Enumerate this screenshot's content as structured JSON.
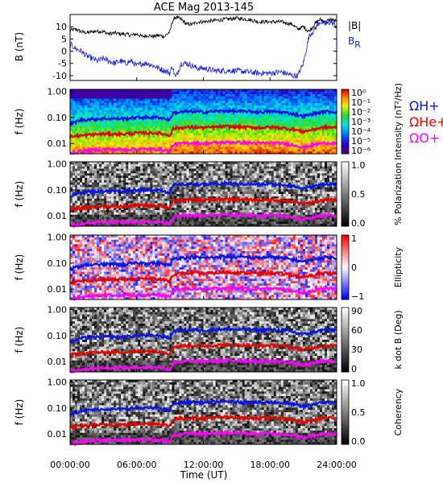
{
  "title": "ACE Mag 2013-145",
  "colors": {
    "B_total": "#000000",
    "B_R": "#1a1ae6",
    "omega_H": "#0a14e6",
    "omega_He": "#e60000",
    "omega_O": "#ff00ff"
  },
  "legend": {
    "top": [
      "|B|",
      "B_R"
    ],
    "gyro": [
      "ΩH+",
      "ΩHe+",
      "ΩO+"
    ]
  },
  "x_axis": {
    "label": "Time (UT)",
    "ticks": [
      "00:00:00",
      "06:00:00",
      "12:00:00",
      "18:00:00",
      "24:00:00"
    ],
    "range_hours": [
      0,
      24
    ]
  },
  "chart_data": [
    {
      "type": "line",
      "panel": "B",
      "ylabel": "B (nT)",
      "ylim": [
        -12,
        15
      ],
      "yticks": [
        "10",
        "5",
        "0",
        "-5",
        "-10"
      ],
      "ytick_values": [
        10,
        5,
        0,
        -5,
        -10
      ],
      "series": [
        {
          "name": "|B|",
          "x": [
            0,
            0.5,
            1,
            1.5,
            2,
            2.5,
            3,
            3.5,
            4,
            4.5,
            5,
            5.5,
            6,
            6.5,
            7,
            7.5,
            8,
            8.5,
            9,
            9.2,
            9.5,
            10,
            10.5,
            11,
            11.5,
            12,
            13,
            14,
            15,
            16,
            17,
            18,
            19,
            20,
            20.5,
            21,
            21.5,
            22,
            22.5,
            23,
            23.5,
            24
          ],
          "y": [
            8.5,
            9,
            8,
            7.5,
            8,
            8.2,
            8,
            7,
            7.5,
            7,
            7,
            6.5,
            7,
            6,
            6.5,
            6,
            6.5,
            6,
            8,
            12,
            14,
            13,
            11,
            11,
            12,
            12,
            12.5,
            13,
            13.5,
            13,
            12,
            12,
            12,
            11,
            9,
            10,
            8,
            11,
            13,
            12,
            13,
            12
          ]
        },
        {
          "name": "B_R",
          "x": [
            0,
            0.5,
            1,
            1.5,
            2,
            2.5,
            3,
            3.5,
            4,
            4.5,
            5,
            5.5,
            6,
            6.5,
            7,
            7.5,
            8,
            8.5,
            9,
            9.2,
            9.5,
            10,
            10.5,
            11,
            11.5,
            12,
            13,
            14,
            15,
            16,
            17,
            18,
            19,
            20,
            20.5,
            21,
            21.5,
            22,
            22.5,
            23,
            23.5,
            24
          ],
          "y": [
            3,
            1,
            0,
            -2,
            -3,
            -4,
            -3,
            -4,
            -5,
            -4,
            -5,
            -4,
            -6,
            -5,
            -5,
            -6,
            -7,
            -8,
            -9,
            -6,
            -11,
            -5,
            -5,
            -6,
            -7,
            -7,
            -8,
            -8,
            -8,
            -8.5,
            -9,
            -9,
            -8.5,
            -10,
            -10,
            -5,
            6,
            9,
            12,
            11,
            12,
            10
          ]
        }
      ]
    },
    {
      "type": "heatmap",
      "panel": "intensity",
      "ylabel": "f (Hz)",
      "yscale": "log",
      "ylim": [
        0.004,
        1.2
      ],
      "yticks": [
        "1.00",
        "0.10",
        "0.01"
      ],
      "ytick_values": [
        1,
        0.1,
        0.01
      ],
      "colorbar": {
        "label": "Intensity (nT²/Hz)",
        "ticks": [
          "10⁰",
          "10⁻¹",
          "10⁻²",
          "10⁻³",
          "10⁻⁴",
          "10⁻⁵",
          "10⁻⁶"
        ],
        "scale": "rainbow"
      }
    },
    {
      "type": "heatmap",
      "panel": "polarization",
      "ylabel": "f (Hz)",
      "yscale": "log",
      "ylim": [
        0.004,
        1.2
      ],
      "yticks": [
        "1.00",
        "0.10",
        "0.01"
      ],
      "ytick_values": [
        1,
        0.1,
        0.01
      ],
      "colorbar": {
        "label": "% Polarization",
        "ticks": [
          "1.0",
          "0.5",
          "0.0"
        ],
        "scale": "gray"
      }
    },
    {
      "type": "heatmap",
      "panel": "ellipticity",
      "ylabel": "f (Hz)",
      "yscale": "log",
      "ylim": [
        0.004,
        1.2
      ],
      "yticks": [
        "1.00",
        "0.10",
        "0.01"
      ],
      "ytick_values": [
        1,
        0.1,
        0.01
      ],
      "colorbar": {
        "label": "Ellipticity",
        "ticks": [
          "1",
          "0",
          "−1"
        ],
        "scale": "bwr"
      }
    },
    {
      "type": "heatmap",
      "panel": "kdotb",
      "ylabel": "f (Hz)",
      "yscale": "log",
      "ylim": [
        0.004,
        1.2
      ],
      "yticks": [
        "1.00",
        "0.10",
        "0.01"
      ],
      "ytick_values": [
        1,
        0.1,
        0.01
      ],
      "colorbar": {
        "label": "k dot B (Deg)",
        "ticks": [
          "90",
          "60",
          "30",
          "0"
        ],
        "scale": "gray"
      }
    },
    {
      "type": "heatmap",
      "panel": "coherency",
      "ylabel": "f (Hz)",
      "yscale": "log",
      "ylim": [
        0.004,
        1.2
      ],
      "yticks": [
        "1.00",
        "0.10",
        "0.01"
      ],
      "ytick_values": [
        1,
        0.1,
        0.01
      ],
      "colorbar": {
        "label": "Coherency",
        "ticks": [
          "1.0",
          "0.5",
          "0.0"
        ],
        "scale": "gray"
      }
    }
  ],
  "gyrofrequency": {
    "x": [
      0,
      1,
      2,
      3,
      4,
      5,
      6,
      7,
      8,
      9,
      9.3,
      10,
      11,
      12,
      13,
      14,
      15,
      16,
      17,
      18,
      19,
      20,
      21,
      22,
      23,
      24
    ],
    "H+": [
      0.055,
      0.08,
      0.085,
      0.09,
      0.09,
      0.09,
      0.1,
      0.1,
      0.1,
      0.08,
      0.15,
      0.16,
      0.17,
      0.16,
      0.17,
      0.18,
      0.17,
      0.17,
      0.16,
      0.17,
      0.16,
      0.14,
      0.11,
      0.14,
      0.17,
      0.16
    ],
    "He+": [
      0.018,
      0.02,
      0.022,
      0.023,
      0.023,
      0.023,
      0.025,
      0.025,
      0.025,
      0.02,
      0.038,
      0.04,
      0.042,
      0.04,
      0.042,
      0.045,
      0.043,
      0.042,
      0.04,
      0.042,
      0.04,
      0.035,
      0.028,
      0.035,
      0.042,
      0.04
    ],
    "O+": [
      0.004,
      0.005,
      0.0055,
      0.0058,
      0.0058,
      0.0058,
      0.006,
      0.006,
      0.006,
      0.005,
      0.009,
      0.01,
      0.0105,
      0.01,
      0.0105,
      0.011,
      0.011,
      0.0105,
      0.01,
      0.0105,
      0.01,
      0.009,
      0.007,
      0.009,
      0.0105,
      0.01
    ]
  }
}
